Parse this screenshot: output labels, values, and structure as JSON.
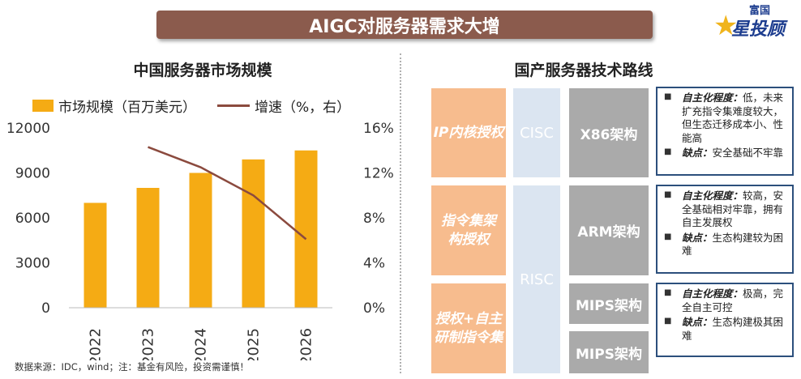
{
  "banner": {
    "title": "AIGC对服务器需求大增"
  },
  "logo": {
    "top": "富国",
    "main": "星投顾"
  },
  "left_title": "中国服务器市场规模",
  "legend": {
    "bar": "市场规模（百万美元）",
    "line": "增速（%，右）"
  },
  "source": "数据来源：IDC，wind；注：基金有风险，投资需谨慎！",
  "colors": {
    "bar": "#f5ab14",
    "line": "#8b4a3e",
    "banner": "#8b5b4d"
  },
  "chart_data": {
    "type": "bar",
    "categories": [
      "2022",
      "2023",
      "2024",
      "2025",
      "2026"
    ],
    "series": [
      {
        "name": "市场规模（百万美元）",
        "axis": "left",
        "type": "bar",
        "values": [
          7000,
          8000,
          9000,
          9900,
          10500
        ]
      },
      {
        "name": "增速（%，右）",
        "axis": "right",
        "type": "line",
        "values": [
          null,
          14.3,
          12.5,
          10.0,
          6.1
        ]
      }
    ],
    "y_left": {
      "min": 0,
      "max": 12000,
      "ticks": [
        "0",
        "3000",
        "6000",
        "9000",
        "12000"
      ],
      "tick_values": [
        0,
        3000,
        6000,
        9000,
        12000
      ]
    },
    "y_right": {
      "min": 0,
      "max": 16,
      "ticks": [
        "0%",
        "4%",
        "8%",
        "12%",
        "16%"
      ],
      "tick_values": [
        0,
        4,
        8,
        12,
        16
      ]
    },
    "grid": false,
    "legend_position": "top"
  },
  "right_title": "国产服务器技术路线",
  "auth": [
    "IP内核授权",
    "指令集架构授权",
    "授权+自主研制指令集"
  ],
  "isa": [
    "CISC",
    "RISC"
  ],
  "arch": [
    "X86架构",
    "ARM架构",
    "MIPS架构",
    "MIPS架构"
  ],
  "desc": [
    {
      "k1": "自主化程度：",
      "v1": "低，未来扩充指令集难度较大，但生态迁移成本小、性能高",
      "k2": "缺点：",
      "v2": "安全基础不牢靠"
    },
    {
      "k1": "自主化程度：",
      "v1": "较高，安全基础相对牢靠，拥有自主发展权",
      "k2": "缺点：",
      "v2": "生态构建较为困难"
    },
    {
      "k1": "自主化程度：",
      "v1": "极高，完全自主可控",
      "k2": "缺点：",
      "v2": "生态构建极其困难"
    }
  ]
}
